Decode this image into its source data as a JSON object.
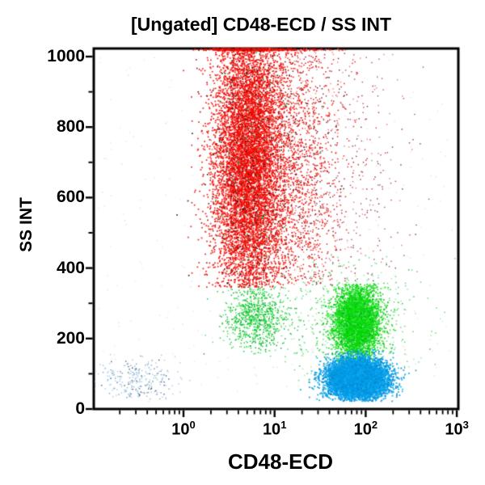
{
  "chart_data": {
    "type": "scatter",
    "title": "[Ungated] CD48-ECD / SS INT",
    "xlabel": "CD48-ECD",
    "ylabel": "SS INT",
    "x_scale": "log",
    "y_scale": "linear",
    "x_range": [
      0.1,
      1000
    ],
    "y_range": [
      0,
      1023
    ],
    "x_tick_base": "10",
    "x_tick_exponents": [
      0,
      1,
      2,
      3
    ],
    "y_ticks": [
      0,
      200,
      400,
      600,
      800,
      1000
    ],
    "y_minor_ticks": [
      100,
      300,
      500,
      700,
      900
    ],
    "grid": false,
    "legend": null,
    "background_color": "#ffffff",
    "axis_color": "#000000",
    "populations": [
      {
        "name": "granulocytes-red-main",
        "n": 9000,
        "x_log_mean": 0.72,
        "x_log_sd": 0.2,
        "y_mean": 700,
        "y_sd": 215,
        "y_min": 345,
        "y_max": 1023,
        "pileup_high": true,
        "size": 1.7,
        "colors": [
          [
            "#f50800",
            0.78
          ],
          [
            "#d40f05",
            0.08
          ],
          [
            "#8f1010",
            0.05
          ],
          [
            "#ff6a5a",
            0.04
          ],
          [
            "#3a0c0c",
            0.03
          ],
          [
            "#00b050",
            0.01
          ],
          [
            "#111111",
            0.01
          ]
        ]
      },
      {
        "name": "granulocytes-red-right-tail",
        "n": 1700,
        "x_log_mean": 1.28,
        "x_log_sd": 0.24,
        "y_mean": 660,
        "y_sd": 240,
        "y_min": 350,
        "y_max": 1023,
        "pileup_high": true,
        "size": 1.5,
        "colors": [
          [
            "#f50800",
            0.58
          ],
          [
            "#b01020",
            0.15
          ],
          [
            "#8f1010",
            0.1
          ],
          [
            "#ff7a6a",
            0.12
          ],
          [
            "#401010",
            0.05
          ]
        ]
      },
      {
        "name": "sparse-maroon-upper-right",
        "n": 300,
        "x_log_mean": 1.85,
        "x_log_sd": 0.3,
        "y_mean": 640,
        "y_sd": 270,
        "y_min": 360,
        "y_max": 1015,
        "pileup_high": false,
        "size": 1.4,
        "colors": [
          [
            "#b03050",
            0.45
          ],
          [
            "#d06a7a",
            0.3
          ],
          [
            "#7a1530",
            0.25
          ]
        ]
      },
      {
        "name": "green-under-red",
        "n": 850,
        "x_log_mean": 0.8,
        "x_log_sd": 0.17,
        "y_mean": 258,
        "y_sd": 52,
        "y_min": 150,
        "y_max": 348,
        "pileup_high": false,
        "size": 1.5,
        "colors": [
          [
            "#00cc22",
            0.6
          ],
          [
            "#4cdc66",
            0.25
          ],
          [
            "#0a9a28",
            0.15
          ]
        ]
      },
      {
        "name": "monocytes-green",
        "n": 4200,
        "x_log_mean": 1.9,
        "x_log_sd": 0.125,
        "y_mean": 245,
        "y_sd": 52,
        "y_min": 118,
        "y_max": 355,
        "pileup_high": false,
        "size": 1.7,
        "colors": [
          [
            "#05dc05",
            0.75
          ],
          [
            "#3ae84a",
            0.15
          ],
          [
            "#08aa18",
            0.1
          ]
        ]
      },
      {
        "name": "green-halo-scatter",
        "n": 600,
        "x_log_mean": 1.85,
        "x_log_sd": 0.38,
        "y_mean": 250,
        "y_sd": 100,
        "y_min": 50,
        "y_max": 440,
        "pileup_high": false,
        "size": 1.4,
        "colors": [
          [
            "#3ad45a",
            0.5
          ],
          [
            "#8ae89a",
            0.3
          ],
          [
            "#0ab02a",
            0.2
          ]
        ]
      },
      {
        "name": "lymphocytes-blue",
        "n": 7500,
        "x_log_mean": 1.91,
        "x_log_sd": 0.16,
        "y_mean": 86,
        "y_sd": 28,
        "y_min": 22,
        "y_max": 170,
        "pileup_high": false,
        "size": 1.8,
        "colors": [
          [
            "#009ce8",
            0.72
          ],
          [
            "#18aef5",
            0.16
          ],
          [
            "#0b82c8",
            0.12
          ]
        ]
      },
      {
        "name": "debris-left-lightblue",
        "n": 270,
        "x_log_mean": -0.5,
        "x_log_sd": 0.23,
        "y_mean": 80,
        "y_sd": 30,
        "y_min": 28,
        "y_max": 155,
        "pileup_high": false,
        "size": 1.4,
        "colors": [
          [
            "#9cc4e4",
            0.5
          ],
          [
            "#6a96c0",
            0.2
          ],
          [
            "#32466e",
            0.15
          ],
          [
            "#8fb4a6",
            0.15
          ]
        ]
      },
      {
        "name": "background-noise",
        "n": 300,
        "x_log_uniform": [
          -0.95,
          2.95
        ],
        "y_uniform": [
          15,
          1005
        ],
        "size": 1.4,
        "colors": [
          [
            "#eadadc",
            0.35
          ],
          [
            "#dae6ee",
            0.35
          ],
          [
            "#def0de",
            0.3
          ]
        ]
      }
    ]
  }
}
